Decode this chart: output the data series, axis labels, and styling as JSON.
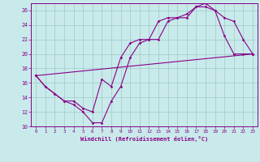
{
  "title": "",
  "xlabel": "Windchill (Refroidissement éolien,°C)",
  "ylabel": "",
  "bg_color": "#c8eaea",
  "line_color": "#880088",
  "grid_color": "#a0c8c8",
  "xlim": [
    -0.5,
    23.5
  ],
  "ylim": [
    10,
    27
  ],
  "xticks": [
    0,
    1,
    2,
    3,
    4,
    5,
    6,
    7,
    8,
    9,
    10,
    11,
    12,
    13,
    14,
    15,
    16,
    17,
    18,
    19,
    20,
    21,
    22,
    23
  ],
  "yticks": [
    10,
    12,
    14,
    16,
    18,
    20,
    22,
    24,
    26
  ],
  "line1_x": [
    0,
    1,
    2,
    3,
    4,
    5,
    6,
    7,
    8,
    9,
    10,
    11,
    12,
    13,
    14,
    15,
    16,
    17,
    18,
    19,
    20,
    21,
    22,
    23
  ],
  "line1_y": [
    17,
    15.5,
    14.5,
    13.5,
    13,
    12,
    10.5,
    10.5,
    13.5,
    15.5,
    19.5,
    21.5,
    22,
    22,
    24.5,
    25,
    25,
    26.5,
    27,
    26,
    25,
    24.5,
    22,
    20
  ],
  "line2_x": [
    0,
    1,
    2,
    3,
    4,
    5,
    6,
    7,
    8,
    9,
    10,
    11,
    12,
    13,
    14,
    15,
    16,
    17,
    18,
    19,
    20,
    21,
    22,
    23
  ],
  "line2_y": [
    17,
    15.5,
    14.5,
    13.5,
    13.5,
    12.5,
    12,
    16.5,
    15.5,
    19.5,
    21.5,
    22,
    22,
    24.5,
    25,
    25,
    25.5,
    26.5,
    26.5,
    26,
    22.5,
    20,
    20,
    20
  ],
  "line3_x": [
    0,
    23
  ],
  "line3_y": [
    17,
    20
  ]
}
